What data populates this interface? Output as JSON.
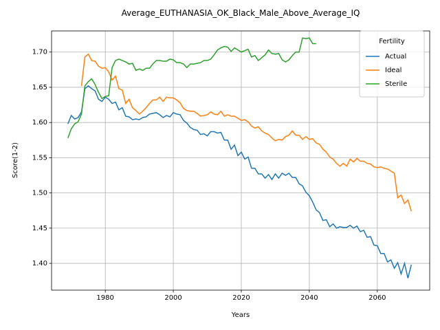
{
  "chart_data": {
    "type": "line",
    "title": "Average_EUTHANASIA_OK_Black_Male_Above_Average_IQ",
    "xlabel": "Years",
    "ylabel": "Score(1-2)",
    "x": [
      1969,
      1970,
      1971,
      1972,
      1973,
      1974,
      1975,
      1976,
      1977,
      1978,
      1979,
      1980,
      1981,
      1982,
      1983,
      1984,
      1985,
      1986,
      1987,
      1988,
      1989,
      1990,
      1991,
      1992,
      1993,
      1994,
      1995,
      1996,
      1997,
      1998,
      1999,
      2000,
      2001,
      2002,
      2003,
      2004,
      2005,
      2006,
      2007,
      2008,
      2009,
      2010,
      2011,
      2012,
      2013,
      2014,
      2015,
      2016,
      2017,
      2018,
      2019,
      2020,
      2021,
      2022,
      2023,
      2024,
      2025,
      2026,
      2027,
      2028,
      2029,
      2030,
      2031,
      2032,
      2033,
      2034,
      2035,
      2036,
      2037,
      2038,
      2039,
      2040,
      2041,
      2042,
      2043,
      2044,
      2045,
      2046,
      2047,
      2048,
      2049,
      2050,
      2051,
      2052,
      2053,
      2054,
      2055,
      2056,
      2057,
      2058,
      2059,
      2060,
      2061,
      2062,
      2063,
      2064,
      2065,
      2066,
      2067,
      2068,
      2069,
      2070
    ],
    "series": [
      {
        "name": "Actual",
        "color": "#1f77b4",
        "values": [
          1.598,
          1.61,
          1.605,
          1.607,
          1.615,
          1.648,
          1.652,
          1.648,
          1.645,
          1.633,
          1.63,
          1.636,
          1.633,
          1.627,
          1.629,
          1.618,
          1.621,
          1.609,
          1.608,
          1.604,
          1.605,
          1.604,
          1.607,
          1.608,
          1.612,
          1.613,
          1.614,
          1.611,
          1.607,
          1.61,
          1.608,
          1.614,
          1.612,
          1.611,
          1.603,
          1.599,
          1.593,
          1.59,
          1.589,
          1.583,
          1.584,
          1.581,
          1.587,
          1.587,
          1.585,
          1.586,
          1.575,
          1.575,
          1.562,
          1.568,
          1.553,
          1.558,
          1.548,
          1.551,
          1.535,
          1.535,
          1.527,
          1.527,
          1.521,
          1.526,
          1.519,
          1.527,
          1.521,
          1.528,
          1.525,
          1.528,
          1.522,
          1.522,
          1.513,
          1.51,
          1.501,
          1.496,
          1.487,
          1.476,
          1.472,
          1.461,
          1.462,
          1.452,
          1.456,
          1.45,
          1.452,
          1.451,
          1.451,
          1.454,
          1.45,
          1.453,
          1.445,
          1.447,
          1.437,
          1.438,
          1.426,
          1.425,
          1.414,
          1.414,
          1.402,
          1.405,
          1.393,
          1.401,
          1.385,
          1.4,
          1.379,
          1.398
        ]
      },
      {
        "name": "Ideal",
        "color": "#ff7f0e",
        "values": [
          null,
          null,
          null,
          null,
          1.652,
          1.693,
          1.697,
          1.688,
          1.687,
          1.68,
          1.677,
          1.678,
          1.672,
          1.66,
          1.666,
          1.648,
          1.646,
          1.627,
          1.633,
          1.621,
          1.617,
          1.612,
          1.616,
          1.621,
          1.627,
          1.632,
          1.632,
          1.636,
          1.63,
          1.636,
          1.635,
          1.635,
          1.632,
          1.628,
          1.62,
          1.617,
          1.616,
          1.616,
          1.613,
          1.609,
          1.61,
          1.611,
          1.615,
          1.612,
          1.611,
          1.616,
          1.609,
          1.611,
          1.609,
          1.609,
          1.606,
          1.603,
          1.604,
          1.601,
          1.595,
          1.592,
          1.594,
          1.588,
          1.585,
          1.583,
          1.578,
          1.574,
          1.576,
          1.575,
          1.58,
          1.582,
          1.588,
          1.582,
          1.582,
          1.576,
          1.58,
          1.576,
          1.577,
          1.571,
          1.569,
          1.562,
          1.558,
          1.551,
          1.548,
          1.542,
          1.538,
          1.542,
          1.538,
          1.548,
          1.544,
          1.549,
          1.545,
          1.545,
          1.542,
          1.541,
          1.537,
          1.536,
          1.537,
          1.535,
          1.534,
          1.531,
          1.528,
          1.493,
          1.497,
          1.485,
          1.49,
          1.474
        ]
      },
      {
        "name": "Sterile",
        "color": "#2ca02c",
        "values": [
          1.578,
          1.591,
          1.598,
          1.601,
          1.612,
          1.652,
          1.658,
          1.662,
          1.654,
          1.643,
          1.634,
          1.637,
          1.638,
          1.678,
          1.688,
          1.69,
          1.688,
          1.686,
          1.683,
          1.684,
          1.674,
          1.676,
          1.674,
          1.677,
          1.677,
          1.683,
          1.688,
          1.688,
          1.687,
          1.687,
          1.69,
          1.689,
          1.685,
          1.685,
          1.683,
          1.678,
          1.683,
          1.683,
          1.684,
          1.685,
          1.688,
          1.688,
          1.69,
          1.696,
          1.703,
          1.706,
          1.708,
          1.707,
          1.701,
          1.706,
          1.703,
          1.7,
          1.702,
          1.704,
          1.693,
          1.695,
          1.688,
          1.692,
          1.696,
          1.703,
          1.698,
          1.697,
          1.698,
          1.689,
          1.686,
          1.689,
          1.695,
          1.7,
          1.7,
          1.72,
          1.719,
          1.72,
          1.712,
          1.712,
          null,
          null,
          null,
          null,
          null,
          null,
          null,
          null,
          null,
          null,
          null,
          null,
          null,
          null,
          null,
          null,
          null,
          null,
          null,
          null,
          null,
          null,
          null,
          null,
          null,
          null,
          null,
          null
        ]
      }
    ],
    "xlim": [
      1964.2,
      2075.4
    ],
    "ylim": [
      1.362,
      1.73
    ],
    "xticks": [
      1980,
      2000,
      2020,
      2040,
      2060
    ],
    "yticks": [
      {
        "value": 1.4,
        "label": "1.40"
      },
      1.45,
      {
        "value": 1.5,
        "label": "1.50"
      },
      1.55,
      {
        "value": 1.6,
        "label": "1.60"
      },
      1.65,
      {
        "value": 1.7,
        "label": "1.70"
      }
    ],
    "grid": true,
    "legend_title": "Fertility",
    "legend_position": "upper right"
  }
}
